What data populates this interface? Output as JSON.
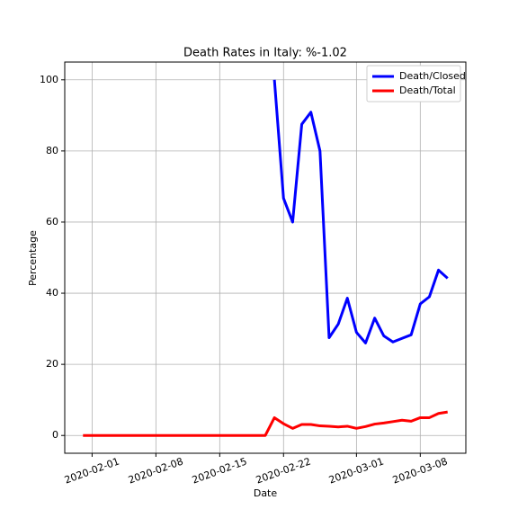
{
  "chart_data": {
    "type": "line",
    "title": "Death Rates in Italy: %-1.02",
    "xlabel": "Date",
    "ylabel": "Percentage",
    "x": [
      "2020-01-31",
      "2020-02-01",
      "2020-02-02",
      "2020-02-03",
      "2020-02-04",
      "2020-02-05",
      "2020-02-06",
      "2020-02-07",
      "2020-02-08",
      "2020-02-09",
      "2020-02-10",
      "2020-02-11",
      "2020-02-12",
      "2020-02-13",
      "2020-02-14",
      "2020-02-15",
      "2020-02-16",
      "2020-02-17",
      "2020-02-18",
      "2020-02-19",
      "2020-02-20",
      "2020-02-21",
      "2020-02-22",
      "2020-02-23",
      "2020-02-24",
      "2020-02-25",
      "2020-02-26",
      "2020-02-27",
      "2020-02-28",
      "2020-02-29",
      "2020-03-01",
      "2020-03-02",
      "2020-03-03",
      "2020-03-04",
      "2020-03-05",
      "2020-03-06",
      "2020-03-07",
      "2020-03-08",
      "2020-03-09",
      "2020-03-10",
      "2020-03-11"
    ],
    "series": [
      {
        "name": "Death/Closed",
        "color": "#0000ff",
        "values": [
          null,
          null,
          null,
          null,
          null,
          null,
          null,
          null,
          null,
          null,
          null,
          null,
          null,
          null,
          null,
          null,
          null,
          null,
          null,
          null,
          null,
          100,
          66.7,
          60,
          87.5,
          90.9,
          80,
          27.5,
          31.3,
          38.6,
          29,
          26,
          33,
          28,
          26.3,
          27.3,
          28.3,
          37,
          39,
          46.5,
          44.2
        ]
      },
      {
        "name": "Death/Total",
        "color": "#ff0000",
        "values": [
          0,
          0,
          0,
          0,
          0,
          0,
          0,
          0,
          0,
          0,
          0,
          0,
          0,
          0,
          0,
          0,
          0,
          0,
          0,
          0,
          0,
          5,
          3.3,
          2,
          3.1,
          3.1,
          2.7,
          2.6,
          2.4,
          2.6,
          2,
          2.5,
          3.2,
          3.5,
          3.9,
          4.3,
          4,
          5,
          5,
          6.2,
          6.6
        ]
      }
    ],
    "xlim": [
      "2020-01-29",
      "2020-03-13"
    ],
    "xticks": [
      "2020-02-01",
      "2020-02-08",
      "2020-02-15",
      "2020-02-22",
      "2020-03-01",
      "2020-03-08"
    ],
    "ylim": [
      -5,
      105
    ],
    "yticks": [
      0,
      20,
      40,
      60,
      80,
      100
    ],
    "grid": true,
    "legend": "upper right"
  }
}
